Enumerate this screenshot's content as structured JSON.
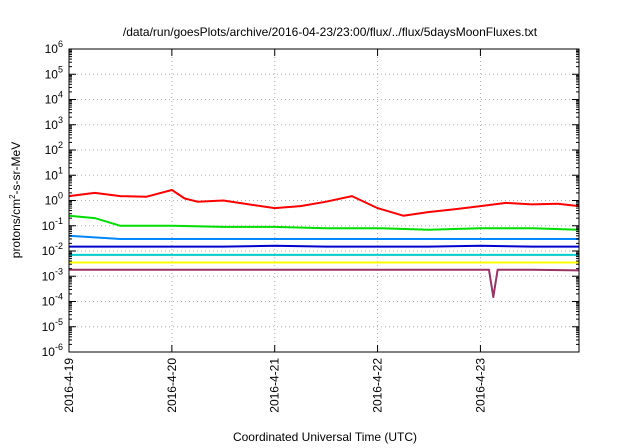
{
  "chart_data": {
    "type": "line",
    "title": "/data/run/goesPlots/archive/2016-04-23/23:00/flux/../flux/5daysMoonFluxes.txt",
    "xlabel": "Coordinated Universal Time (UTC)",
    "ylabel_parts": {
      "pre": "protons/cm",
      "sup": "2",
      "post": "-s-sr-MeV"
    },
    "y_scale": "log",
    "y_ticks": [
      {
        "base": "10",
        "exp": "-6"
      },
      {
        "base": "10",
        "exp": "-5"
      },
      {
        "base": "10",
        "exp": "-4"
      },
      {
        "base": "10",
        "exp": "-3"
      },
      {
        "base": "10",
        "exp": "-2"
      },
      {
        "base": "10",
        "exp": "-1"
      },
      {
        "base": "10",
        "exp": "0"
      },
      {
        "base": "10",
        "exp": "1"
      },
      {
        "base": "10",
        "exp": "2"
      },
      {
        "base": "10",
        "exp": "3"
      },
      {
        "base": "10",
        "exp": "4"
      },
      {
        "base": "10",
        "exp": "5"
      },
      {
        "base": "10",
        "exp": "6"
      }
    ],
    "ylim_exp": [
      -6,
      6
    ],
    "x_ticks": [
      "2016-4-19",
      "2016-4-20",
      "2016-4-21",
      "2016-4-22",
      "2016-4-23"
    ],
    "xlim": [
      "2016-04-19T00:00",
      "2016-04-23T23:00"
    ],
    "grid": true,
    "series": [
      {
        "color": "#ff0000",
        "x": [
          "2016-04-19T00:00",
          "2016-04-19T06:00",
          "2016-04-19T12:00",
          "2016-04-19T18:00",
          "2016-04-20T00:00",
          "2016-04-20T03:00",
          "2016-04-20T06:00",
          "2016-04-20T12:00",
          "2016-04-20T18:00",
          "2016-04-21T00:00",
          "2016-04-21T06:00",
          "2016-04-21T12:00",
          "2016-04-21T18:00",
          "2016-04-22T00:00",
          "2016-04-22T06:00",
          "2016-04-22T12:00",
          "2016-04-22T18:00",
          "2016-04-23T00:00",
          "2016-04-23T06:00",
          "2016-04-23T12:00",
          "2016-04-23T18:00",
          "2016-04-23T23:00"
        ],
        "values": [
          1.5,
          2.0,
          1.5,
          1.4,
          2.6,
          1.2,
          0.9,
          1.0,
          0.7,
          0.5,
          0.6,
          0.9,
          1.5,
          0.5,
          0.25,
          0.35,
          0.45,
          0.6,
          0.8,
          0.7,
          0.75,
          0.6
        ]
      },
      {
        "color": "#00dd00",
        "x": [
          "2016-04-19T00:00",
          "2016-04-19T06:00",
          "2016-04-19T12:00",
          "2016-04-20T00:00",
          "2016-04-20T12:00",
          "2016-04-21T00:00",
          "2016-04-21T12:00",
          "2016-04-22T00:00",
          "2016-04-22T12:00",
          "2016-04-23T00:00",
          "2016-04-23T12:00",
          "2016-04-23T23:00"
        ],
        "values": [
          0.25,
          0.2,
          0.1,
          0.1,
          0.09,
          0.09,
          0.08,
          0.08,
          0.07,
          0.08,
          0.08,
          0.07
        ]
      },
      {
        "color": "#0088ff",
        "x": [
          "2016-04-19T00:00",
          "2016-04-19T12:00",
          "2016-04-20T00:00",
          "2016-04-20T12:00",
          "2016-04-21T00:00",
          "2016-04-21T12:00",
          "2016-04-22T00:00",
          "2016-04-22T12:00",
          "2016-04-23T00:00",
          "2016-04-23T12:00",
          "2016-04-23T23:00"
        ],
        "values": [
          0.04,
          0.03,
          0.03,
          0.03,
          0.03,
          0.03,
          0.03,
          0.03,
          0.03,
          0.03,
          0.03
        ]
      },
      {
        "color": "#0000cc",
        "x": [
          "2016-04-19T00:00",
          "2016-04-19T12:00",
          "2016-04-20T00:00",
          "2016-04-20T12:00",
          "2016-04-21T00:00",
          "2016-04-21T12:00",
          "2016-04-22T00:00",
          "2016-04-22T12:00",
          "2016-04-23T00:00",
          "2016-04-23T12:00",
          "2016-04-23T23:00"
        ],
        "values": [
          0.015,
          0.015,
          0.015,
          0.015,
          0.016,
          0.015,
          0.015,
          0.015,
          0.016,
          0.015,
          0.015
        ]
      },
      {
        "color": "#00cccc",
        "x": [
          "2016-04-19T00:00",
          "2016-04-19T12:00",
          "2016-04-20T00:00",
          "2016-04-20T12:00",
          "2016-04-21T00:00",
          "2016-04-21T12:00",
          "2016-04-22T00:00",
          "2016-04-22T12:00",
          "2016-04-23T00:00",
          "2016-04-23T12:00",
          "2016-04-23T23:00"
        ],
        "values": [
          0.007,
          0.007,
          0.007,
          0.007,
          0.007,
          0.007,
          0.007,
          0.007,
          0.007,
          0.007,
          0.007
        ]
      },
      {
        "color": "#ffff00",
        "x": [
          "2016-04-19T00:00",
          "2016-04-19T12:00",
          "2016-04-20T00:00",
          "2016-04-20T12:00",
          "2016-04-21T00:00",
          "2016-04-21T12:00",
          "2016-04-22T00:00",
          "2016-04-22T12:00",
          "2016-04-23T00:00",
          "2016-04-23T12:00",
          "2016-04-23T23:00"
        ],
        "values": [
          0.0035,
          0.0035,
          0.0035,
          0.0035,
          0.0035,
          0.0035,
          0.0035,
          0.0035,
          0.0035,
          0.0035,
          0.0035
        ]
      },
      {
        "color": "#993366",
        "x": [
          "2016-04-19T00:00",
          "2016-04-19T12:00",
          "2016-04-20T00:00",
          "2016-04-20T12:00",
          "2016-04-21T00:00",
          "2016-04-21T12:00",
          "2016-04-22T00:00",
          "2016-04-22T12:00",
          "2016-04-23T00:00",
          "2016-04-23T02:00",
          "2016-04-23T03:00",
          "2016-04-23T04:00",
          "2016-04-23T12:00",
          "2016-04-23T23:00"
        ],
        "values": [
          0.0018,
          0.0018,
          0.0018,
          0.0018,
          0.0018,
          0.0018,
          0.0018,
          0.0018,
          0.0018,
          0.0018,
          0.00015,
          0.0018,
          0.0018,
          0.0017
        ]
      }
    ]
  }
}
